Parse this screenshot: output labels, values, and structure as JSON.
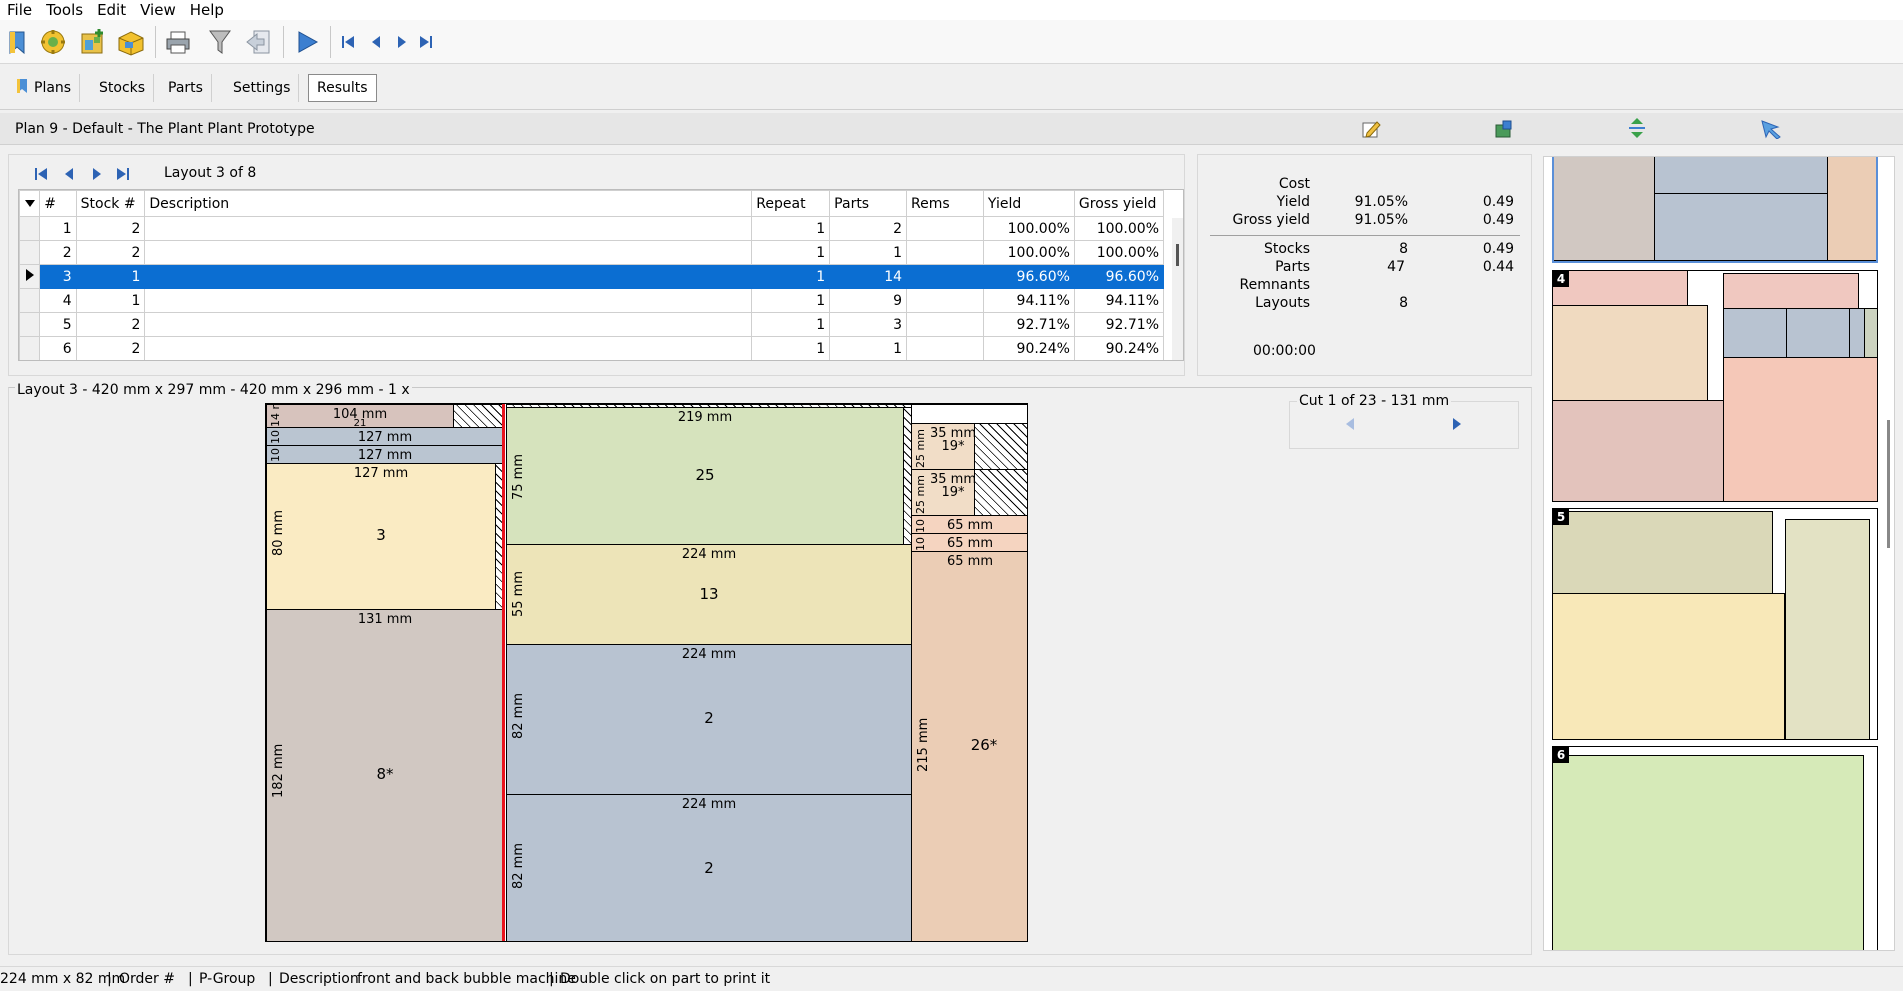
{
  "menu": [
    "File",
    "Tools",
    "Edit",
    "View",
    "Help"
  ],
  "tabs": {
    "plans": "Plans",
    "stocks": "Stocks",
    "parts": "Parts",
    "settings": "Settings",
    "results": "Results"
  },
  "plan_title": "Plan 9  -  Default  -  The Plant Plant Prototype",
  "layout_nav": {
    "label": "Layout 3 of 8"
  },
  "table": {
    "headers": [
      "#",
      "Stock #",
      "Description",
      "Repeat",
      "Parts",
      "Rems",
      "Yield",
      "Gross yield"
    ],
    "rows": [
      {
        "n": "1",
        "stock": "2",
        "desc": "",
        "repeat": "1",
        "parts": "2",
        "rems": "",
        "yield": "100.00%",
        "gross": "100.00%"
      },
      {
        "n": "2",
        "stock": "2",
        "desc": "",
        "repeat": "1",
        "parts": "1",
        "rems": "",
        "yield": "100.00%",
        "gross": "100.00%"
      },
      {
        "n": "3",
        "stock": "1",
        "desc": "",
        "repeat": "1",
        "parts": "14",
        "rems": "",
        "yield": "96.60%",
        "gross": "96.60%"
      },
      {
        "n": "4",
        "stock": "1",
        "desc": "",
        "repeat": "1",
        "parts": "9",
        "rems": "",
        "yield": "94.11%",
        "gross": "94.11%"
      },
      {
        "n": "5",
        "stock": "2",
        "desc": "",
        "repeat": "1",
        "parts": "3",
        "rems": "",
        "yield": "92.71%",
        "gross": "92.71%"
      },
      {
        "n": "6",
        "stock": "2",
        "desc": "",
        "repeat": "1",
        "parts": "1",
        "rems": "",
        "yield": "90.24%",
        "gross": "90.24%"
      }
    ]
  },
  "stats": {
    "cost_label": "Cost",
    "yield_label": "Yield",
    "yield_val": "91.05%",
    "yield_cost": "0.49",
    "gross_label": "Gross yield",
    "gross_val": "91.05%",
    "gross_cost": "0.49",
    "stocks_label": "Stocks",
    "stocks_val": "8",
    "stocks_cost": "0.49",
    "parts_label": "Parts",
    "parts_val": "47",
    "parts_cost": "0.44",
    "remnants_label": "Remnants",
    "layouts_label": "Layouts",
    "layouts_val": "8",
    "time": "00:00:00"
  },
  "layout_title": "Layout 3  -  420 mm x 297 mm  -  420 mm x 296 mm  -  1 x",
  "cut_label": "Cut 1 of 23  -  131 mm",
  "parts": {
    "p104": "104 mm",
    "p21": "21",
    "p14": "14 r",
    "p127a": "127 mm",
    "p127b": "127 mm",
    "p10a": "10",
    "p10b": "10",
    "p127c": "127 mm",
    "p80": "80 mm",
    "p3": "3",
    "p131": "131 mm",
    "p182": "182 mm",
    "p8": "8*",
    "p219": "219 mm",
    "p75": "75 mm",
    "p25": "25",
    "p224a": "224 mm",
    "p55": "55 mm",
    "p13": "13",
    "p224b": "224 mm",
    "p82a": "82 mm",
    "p2a": "2",
    "p224c": "224 mm",
    "p82b": "82 mm",
    "p2b": "2",
    "p35a": "35 mm",
    "p19a": "19*",
    "p25a": "25 mm",
    "p35b": "35 mm",
    "p19b": "19*",
    "p25b": "25 mm",
    "p10c": "10",
    "p10d": "10",
    "p65a": "65 mm",
    "p65b": "65 mm",
    "p65c": "65 mm",
    "p215": "215 mm",
    "p26": "26*"
  },
  "thumbs": {
    "t4": "4",
    "t5": "5",
    "t6": "6"
  },
  "status": {
    "size": "224 mm x 82 mm",
    "order": "Order #",
    "pgroup": "P-Group",
    "desc_label": "Description",
    "desc": "front and back bubble machine",
    "hint": "Double click on part to print it"
  },
  "colors": {
    "select": "#0b6ed2",
    "cut_line": "#e8141e",
    "nav_blue": "#2d63b4"
  }
}
